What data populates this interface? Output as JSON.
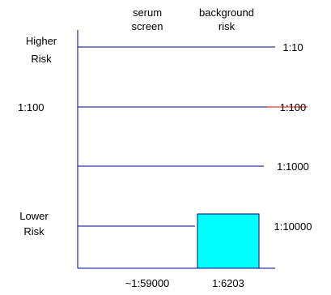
{
  "chart_data": {
    "type": "bar",
    "scale": "log",
    "categories": [
      "serum\nscreen",
      "background\nrisk"
    ],
    "values": [
      59000,
      6203
    ],
    "value_labels": [
      "~1:59000",
      "1:6203"
    ],
    "ticks": [
      {
        "label": "1:10",
        "value": 10
      },
      {
        "label": "1:100",
        "value": 100
      },
      {
        "label": "1:1000",
        "value": 1000
      },
      {
        "label": "1:10000",
        "value": 10000
      }
    ],
    "left_labels": {
      "top": [
        "Higher",
        "Risk"
      ],
      "middle": "1:100",
      "bottom": [
        "Lower",
        "Risk"
      ]
    },
    "colors": {
      "serum_bar": "#800020",
      "background_bar": "#00ffff",
      "grid": "#00008b",
      "accent_tick": "#ff0000"
    }
  }
}
